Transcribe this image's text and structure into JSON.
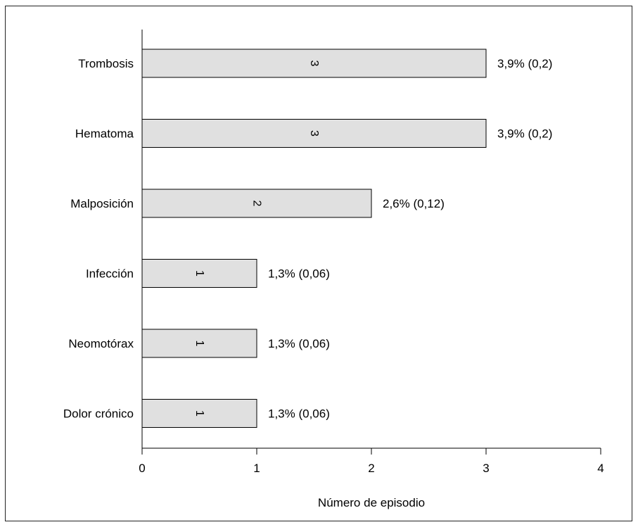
{
  "chart_data": {
    "type": "bar",
    "orientation": "horizontal",
    "categories": [
      "Trombosis",
      "Hematoma",
      "Malposición",
      "Infección",
      "Neomotórax",
      "Dolor crónico"
    ],
    "values": [
      3,
      3,
      2,
      1,
      1,
      1
    ],
    "bar_labels": [
      "3",
      "3",
      "2",
      "1",
      "1",
      "1"
    ],
    "annotations": [
      "3,9% (0,2)",
      "3,9% (0,2)",
      "2,6% (0,12)",
      "1,3% (0,06)",
      "1,3% (0,06)",
      "1,3% (0,06)"
    ],
    "xlabel": "Número de episodio",
    "ylabel": "",
    "title": "",
    "xlim": [
      0,
      4
    ],
    "xticks": [
      0,
      1,
      2,
      3,
      4
    ],
    "xtick_labels": [
      "0",
      "1",
      "2",
      "3",
      "4"
    ],
    "grid": false,
    "colors": {
      "bar_fill": "#e0e0e0",
      "bar_stroke": "#000000",
      "axis": "#000000",
      "frame": "#222222"
    }
  }
}
